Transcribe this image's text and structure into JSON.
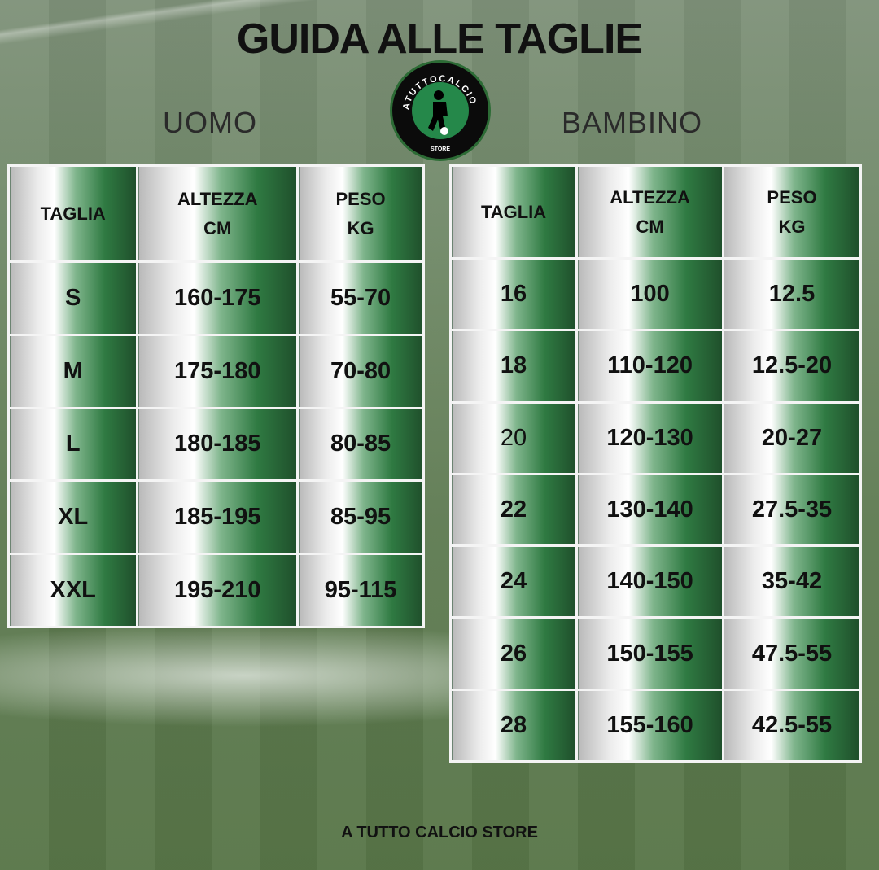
{
  "title": "GUIDA ALLE TAGLIE",
  "logo": {
    "ring_text": "ATUTTOCALCIO",
    "bottom_text": "STORE",
    "icon": "football-player-icon"
  },
  "colors": {
    "cell_green": "#1f4f2b",
    "cell_light": "#ececec"
  },
  "uomo": {
    "label": "UOMO",
    "headers": [
      [
        "TAGLIA"
      ],
      [
        "ALTEZZA",
        "CM"
      ],
      [
        "PESO",
        "KG"
      ]
    ],
    "rows": [
      [
        "S",
        "160-175",
        "55-70"
      ],
      [
        "M",
        "175-180",
        "70-80"
      ],
      [
        "L",
        "180-185",
        "80-85"
      ],
      [
        "XL",
        "185-195",
        "85-95"
      ],
      [
        "XXL",
        "195-210",
        "95-115"
      ]
    ]
  },
  "bambino": {
    "label": "BAMBINO",
    "headers": [
      [
        "TAGLIA"
      ],
      [
        "ALTEZZA",
        "CM"
      ],
      [
        "PESO",
        "KG"
      ]
    ],
    "rows": [
      [
        "16",
        "100",
        "12.5"
      ],
      [
        "18",
        "110-120",
        "12.5-20"
      ],
      [
        "20",
        "120-130",
        "20-27"
      ],
      [
        "22",
        "130-140",
        "27.5-35"
      ],
      [
        "24",
        "140-150",
        "35-42"
      ],
      [
        "26",
        "150-155",
        "47.5-55"
      ],
      [
        "28",
        "155-160",
        "42.5-55"
      ]
    ]
  },
  "footer": "A TUTTO CALCIO STORE"
}
